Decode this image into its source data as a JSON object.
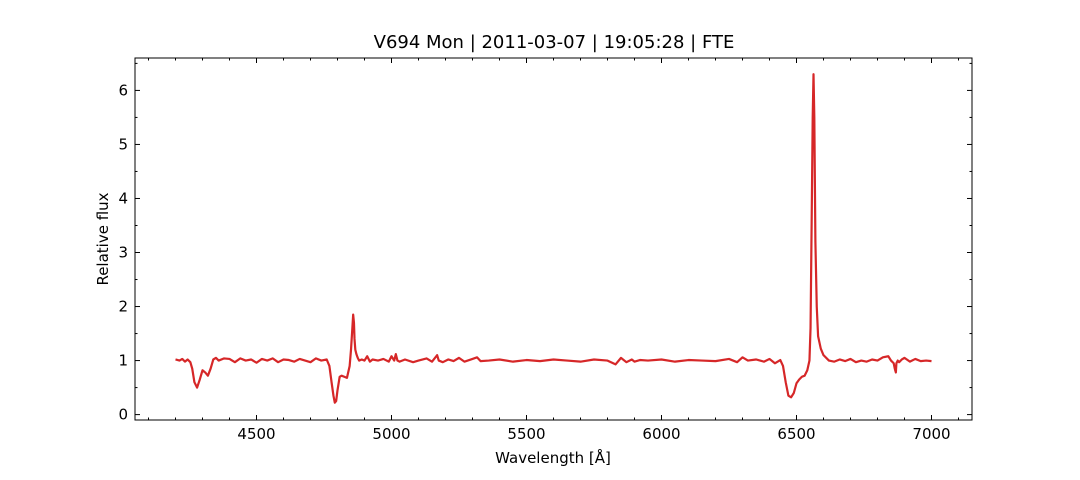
{
  "chart_data": {
    "type": "line",
    "title": "V694 Mon | 2011-03-07 | 19:05:28 | FTE",
    "xlabel": "Wavelength [Å]",
    "ylabel": "Relative flux",
    "xlim": [
      4050,
      7150
    ],
    "ylim": [
      -0.1,
      6.6
    ],
    "xticks": [
      4500,
      5000,
      5500,
      6000,
      6500,
      7000
    ],
    "yticks": [
      0,
      1,
      2,
      3,
      4,
      5,
      6
    ],
    "grid": false,
    "series": [
      {
        "color": "#d62728",
        "x": [
          4200,
          4215,
          4225,
          4235,
          4245,
          4255,
          4262,
          4270,
          4280,
          4290,
          4300,
          4310,
          4320,
          4330,
          4340,
          4350,
          4360,
          4380,
          4400,
          4420,
          4440,
          4460,
          4480,
          4500,
          4520,
          4540,
          4560,
          4580,
          4600,
          4620,
          4640,
          4660,
          4680,
          4700,
          4720,
          4740,
          4760,
          4770,
          4778,
          4785,
          4790,
          4795,
          4800,
          4808,
          4815,
          4825,
          4835,
          4845,
          4850,
          4855,
          4858,
          4861,
          4863,
          4866,
          4870,
          4875,
          4880,
          4890,
          4900,
          4910,
          4920,
          4930,
          4950,
          4970,
          4990,
          5000,
          5010,
          5016,
          5022,
          5030,
          5050,
          5080,
          5100,
          5130,
          5150,
          5169,
          5175,
          5190,
          5210,
          5230,
          5250,
          5270,
          5300,
          5317,
          5330,
          5360,
          5400,
          5450,
          5500,
          5550,
          5600,
          5650,
          5700,
          5750,
          5800,
          5830,
          5850,
          5870,
          5890,
          5900,
          5920,
          5950,
          6000,
          6050,
          6100,
          6150,
          6200,
          6250,
          6280,
          6300,
          6320,
          6350,
          6380,
          6400,
          6420,
          6440,
          6450,
          6460,
          6470,
          6480,
          6490,
          6500,
          6510,
          6520,
          6530,
          6540,
          6548,
          6552,
          6556,
          6560,
          6563,
          6566,
          6570,
          6575,
          6580,
          6590,
          6600,
          6620,
          6640,
          6660,
          6680,
          6700,
          6720,
          6740,
          6760,
          6780,
          6800,
          6820,
          6840,
          6850,
          6860,
          6864,
          6868,
          6870,
          6875,
          6880,
          6890,
          6900,
          6920,
          6940,
          6960,
          6980,
          7000
        ],
        "y": [
          1.02,
          1.0,
          1.03,
          0.98,
          1.02,
          0.97,
          0.85,
          0.6,
          0.5,
          0.65,
          0.82,
          0.78,
          0.72,
          0.85,
          1.02,
          1.05,
          1.0,
          1.04,
          1.03,
          0.97,
          1.04,
          1.0,
          1.02,
          0.96,
          1.03,
          1.0,
          1.04,
          0.97,
          1.02,
          1.01,
          0.98,
          1.03,
          1.0,
          0.97,
          1.04,
          1.0,
          1.02,
          0.9,
          0.6,
          0.35,
          0.22,
          0.25,
          0.45,
          0.7,
          0.72,
          0.7,
          0.68,
          0.9,
          1.2,
          1.6,
          1.85,
          1.7,
          1.4,
          1.2,
          1.12,
          1.05,
          1.0,
          1.02,
          1.0,
          1.08,
          0.98,
          1.02,
          1.0,
          1.03,
          0.98,
          1.08,
          1.0,
          1.12,
          1.0,
          0.98,
          1.02,
          0.97,
          1.0,
          1.04,
          0.98,
          1.1,
          1.0,
          0.97,
          1.02,
          0.99,
          1.05,
          0.98,
          1.03,
          1.06,
          0.99,
          1.0,
          1.02,
          0.98,
          1.01,
          0.99,
          1.02,
          1.0,
          0.98,
          1.02,
          1.0,
          0.93,
          1.05,
          0.97,
          1.02,
          0.98,
          1.01,
          1.0,
          1.02,
          0.98,
          1.01,
          1.0,
          0.99,
          1.03,
          0.97,
          1.06,
          1.0,
          1.02,
          0.98,
          1.03,
          0.95,
          1.01,
          0.9,
          0.6,
          0.35,
          0.32,
          0.4,
          0.58,
          0.65,
          0.7,
          0.72,
          0.82,
          1.0,
          1.6,
          3.5,
          5.5,
          6.3,
          5.5,
          3.2,
          2.0,
          1.45,
          1.22,
          1.1,
          1.0,
          0.98,
          1.02,
          0.99,
          1.03,
          0.97,
          1.0,
          0.98,
          1.02,
          1.0,
          1.06,
          1.08,
          1.0,
          0.95,
          0.85,
          0.78,
          0.95,
          1.0,
          0.97,
          1.02,
          1.05,
          0.98,
          1.03,
          0.99,
          1.0,
          0.99
        ]
      }
    ]
  }
}
